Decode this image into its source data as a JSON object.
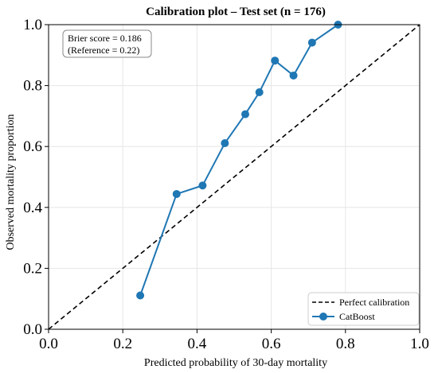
{
  "chart_data": {
    "type": "line",
    "title": "Calibration plot – Test set (n = 176)",
    "xlabel": "Predicted probability of 30-day mortality",
    "ylabel": "Observed mortality proportion",
    "xlim": [
      0.0,
      1.0
    ],
    "ylim": [
      0.0,
      1.0
    ],
    "xticks": [
      "0.0",
      "0.2",
      "0.4",
      "0.6",
      "0.8",
      "1.0"
    ],
    "yticks": [
      "0.0",
      "0.2",
      "0.4",
      "0.6",
      "0.8",
      "1.0"
    ],
    "grid": true,
    "legend_position": "lower-right",
    "annotation": {
      "line1": "Brier score = 0.186",
      "line2": "(Reference = 0.22)"
    },
    "series": [
      {
        "name": "Perfect calibration",
        "style": "dashed",
        "color": "#000000",
        "x": [
          0.0,
          1.0
        ],
        "y": [
          0.0,
          1.0
        ]
      },
      {
        "name": "CatBoost",
        "style": "solid-with-markers",
        "color": "#1f77b4",
        "x": [
          0.247,
          0.345,
          0.415,
          0.475,
          0.53,
          0.568,
          0.61,
          0.66,
          0.71,
          0.78
        ],
        "y": [
          0.111,
          0.444,
          0.472,
          0.611,
          0.706,
          0.778,
          0.882,
          0.833,
          0.941,
          1.0
        ]
      }
    ]
  }
}
